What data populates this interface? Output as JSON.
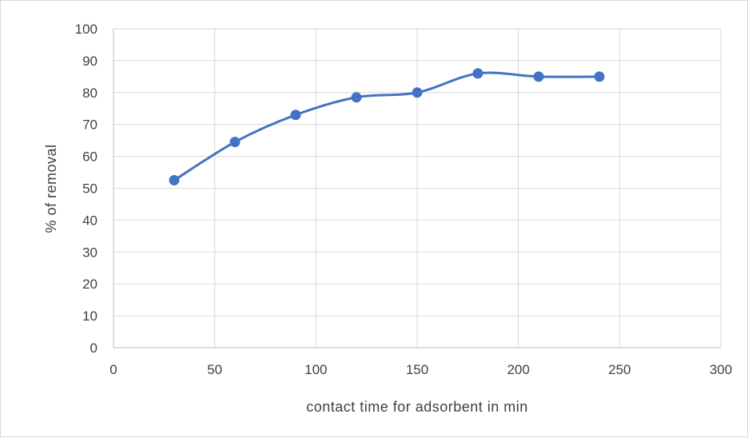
{
  "chart_data": {
    "type": "line",
    "title": "",
    "xlabel": "contact time for adsorbent in min",
    "ylabel": "% of removal",
    "xlim": [
      0,
      300
    ],
    "ylim": [
      0,
      100
    ],
    "xticks": [
      0,
      50,
      100,
      150,
      200,
      250,
      300
    ],
    "yticks": [
      0,
      10,
      20,
      30,
      40,
      50,
      60,
      70,
      80,
      90,
      100
    ],
    "grid": true,
    "legend": "none",
    "series": [
      {
        "color": "#4472c4",
        "x": [
          30,
          60,
          90,
          120,
          150,
          180,
          210,
          240
        ],
        "y": [
          52.5,
          64.5,
          73,
          78.5,
          80,
          86,
          85,
          85
        ]
      }
    ]
  }
}
